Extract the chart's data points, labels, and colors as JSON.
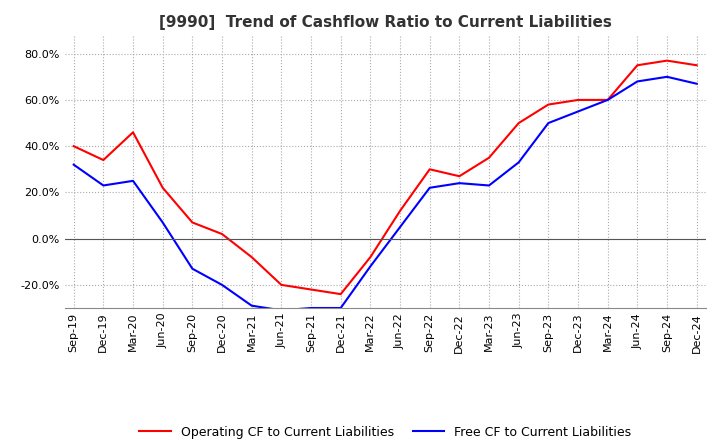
{
  "title": "[9990]  Trend of Cashflow Ratio to Current Liabilities",
  "x_labels": [
    "Sep-19",
    "Dec-19",
    "Mar-20",
    "Jun-20",
    "Sep-20",
    "Dec-20",
    "Mar-21",
    "Jun-21",
    "Sep-21",
    "Dec-21",
    "Mar-22",
    "Jun-22",
    "Sep-22",
    "Dec-22",
    "Mar-23",
    "Jun-23",
    "Sep-23",
    "Dec-23",
    "Mar-24",
    "Jun-24",
    "Sep-24",
    "Dec-24"
  ],
  "operating_cf": [
    40.0,
    34.0,
    46.0,
    22.0,
    7.0,
    2.0,
    -8.0,
    -20.0,
    -22.0,
    -24.0,
    -8.0,
    12.0,
    30.0,
    27.0,
    35.0,
    50.0,
    58.0,
    60.0,
    60.0,
    75.0,
    77.0,
    75.0
  ],
  "free_cf": [
    32.0,
    23.0,
    25.0,
    7.0,
    -13.0,
    -20.0,
    -29.0,
    -31.0,
    -30.0,
    -30.0,
    -12.0,
    5.0,
    22.0,
    24.0,
    23.0,
    33.0,
    50.0,
    55.0,
    60.0,
    68.0,
    70.0,
    67.0
  ],
  "ylim": [
    -30.0,
    88.0
  ],
  "yticks": [
    -20.0,
    0.0,
    20.0,
    40.0,
    60.0,
    80.0
  ],
  "operating_color": "#ff0000",
  "free_color": "#0000ff",
  "grid_color": "#aaaaaa",
  "background_color": "#ffffff",
  "title_fontsize": 11,
  "legend_fontsize": 9,
  "tick_fontsize": 8
}
